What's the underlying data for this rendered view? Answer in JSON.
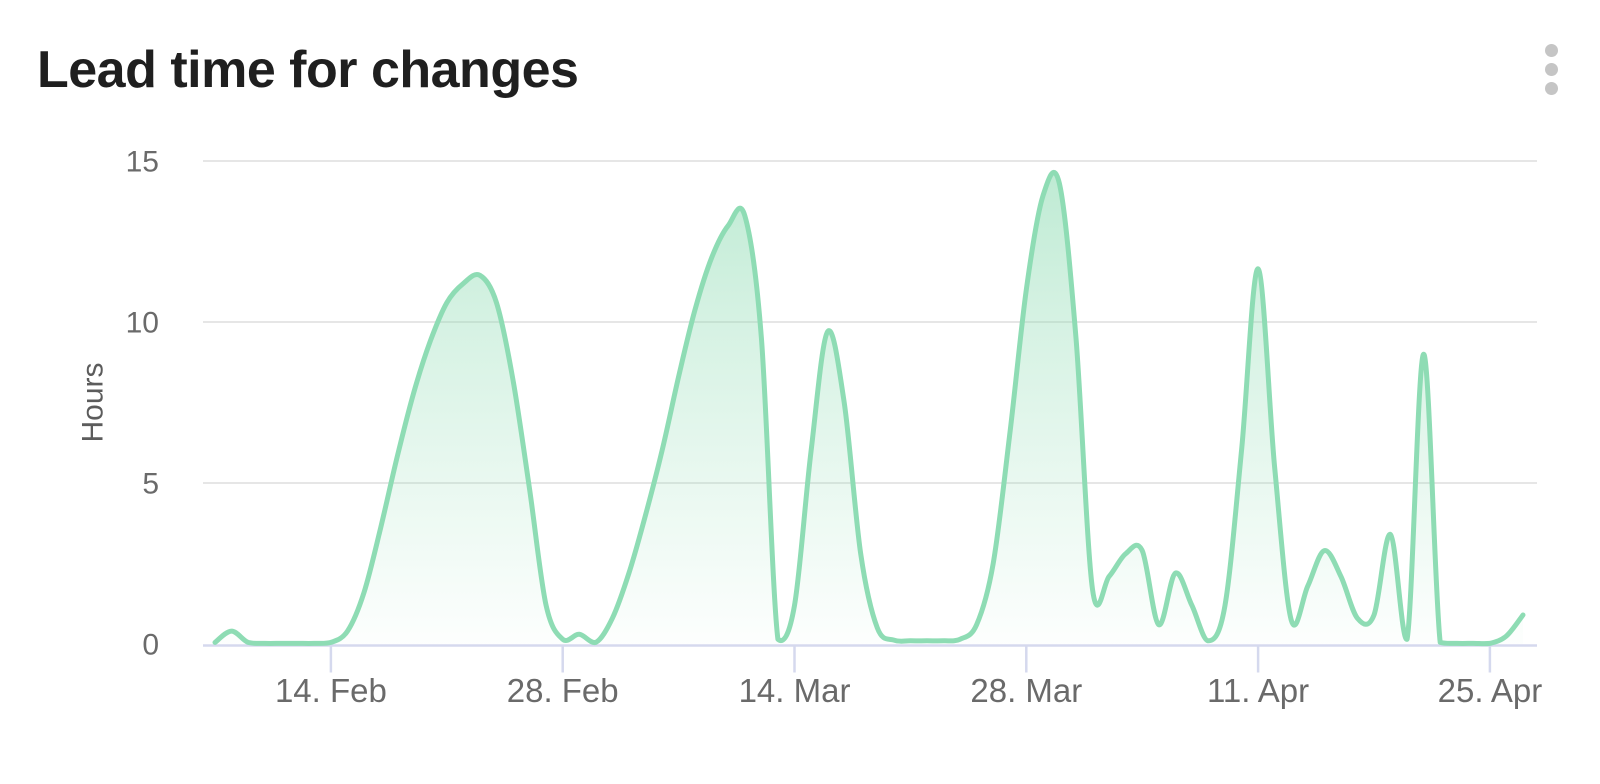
{
  "header": {
    "title": "Lead time for changes",
    "menu_icon": "kebab-vertical-icon"
  },
  "colors": {
    "title_text": "#1f1f1f",
    "kebab_dot": "#c5c5c5",
    "accent_line": "#8edcb4",
    "area_fill_rgb": "141,219,178",
    "gridline": "#e6e6e6",
    "axis_line": "#d5d9ee",
    "tick_label": "#6a6a6a",
    "axis_title_text": "#5c5c5c"
  },
  "chart_data": {
    "type": "area",
    "title": "Lead time for changes",
    "xlabel": "",
    "ylabel": "Hours",
    "ylim": [
      0,
      15
    ],
    "yticks": [
      0,
      5,
      10,
      15
    ],
    "grid": true,
    "legend": false,
    "x_tick_labels": [
      "14. Feb",
      "28. Feb",
      "14. Mar",
      "28. Mar",
      "11. Apr",
      "25. Apr"
    ],
    "x_tick_indices": [
      7,
      21,
      35,
      49,
      63,
      77
    ],
    "series": [
      {
        "name": "Lead time",
        "unit": "hours",
        "x": [
          "7. Feb",
          "8. Feb",
          "9. Feb",
          "10. Feb",
          "11. Feb",
          "12. Feb",
          "13. Feb",
          "14. Feb",
          "15. Feb",
          "16. Feb",
          "17. Feb",
          "18. Feb",
          "19. Feb",
          "20. Feb",
          "21. Feb",
          "22. Feb",
          "23. Feb",
          "24. Feb",
          "25. Feb",
          "26. Feb",
          "27. Feb",
          "28. Feb",
          "1. Mar",
          "2. Mar",
          "3. Mar",
          "4. Mar",
          "5. Mar",
          "6. Mar",
          "7. Mar",
          "8. Mar",
          "9. Mar",
          "10. Mar",
          "11. Mar",
          "12. Mar",
          "13. Mar",
          "14. Mar",
          "15. Mar",
          "16. Mar",
          "17. Mar",
          "18. Mar",
          "19. Mar",
          "20. Mar",
          "21. Mar",
          "22. Mar",
          "23. Mar",
          "24. Mar",
          "25. Mar",
          "26. Mar",
          "27. Mar",
          "28. Mar",
          "29. Mar",
          "30. Mar",
          "31. Mar",
          "1. Apr",
          "2. Apr",
          "3. Apr",
          "4. Apr",
          "5. Apr",
          "6. Apr",
          "7. Apr",
          "8. Apr",
          "9. Apr",
          "10. Apr",
          "11. Apr",
          "12. Apr",
          "13. Apr",
          "14. Apr",
          "15. Apr",
          "16. Apr",
          "17. Apr",
          "18. Apr",
          "19. Apr",
          "20. Apr",
          "21. Apr",
          "22. Apr",
          "23. Apr",
          "24. Apr",
          "25. Apr",
          "26. Apr",
          "27. Apr"
        ],
        "values": [
          0.05,
          0.4,
          0.05,
          0.02,
          0.02,
          0.02,
          0.02,
          0.05,
          0.4,
          1.6,
          3.6,
          5.8,
          7.8,
          9.4,
          10.6,
          11.2,
          11.45,
          10.6,
          8.2,
          4.8,
          1.2,
          0.15,
          0.3,
          0.05,
          0.8,
          2.2,
          4.0,
          6.0,
          8.3,
          10.4,
          12.0,
          13.0,
          13.3,
          9.5,
          0.15,
          1.2,
          6.0,
          9.7,
          7.5,
          2.8,
          0.5,
          0.12,
          0.1,
          0.1,
          0.1,
          0.15,
          0.6,
          2.5,
          6.5,
          11.0,
          13.9,
          14.3,
          9.5,
          1.7,
          2.1,
          2.8,
          2.9,
          0.6,
          2.2,
          1.2,
          0.1,
          1.2,
          6.0,
          11.65,
          5.5,
          0.75,
          1.8,
          2.9,
          2.1,
          0.8,
          0.9,
          3.4,
          0.15,
          9.0,
          0.05,
          0.02,
          0.02,
          0.02,
          0.25,
          0.9
        ]
      }
    ]
  }
}
